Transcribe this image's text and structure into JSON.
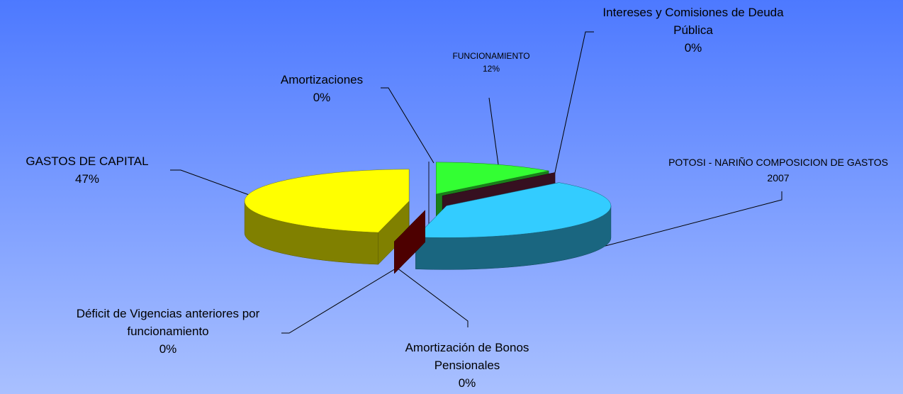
{
  "chart_data": {
    "type": "pie3d",
    "categories": [
      "FUNCIONAMIENTO",
      "Intereses y Comisiones de Deuda Pública",
      "POTOSI - NARIÑO COMPOSICION DE GASTOS 2007",
      "Amortización de Bonos Pensionales",
      "Déficit de Vigencias anteriores por funcionamiento",
      "GASTOS DE CAPITAL",
      "Amortizaciones"
    ],
    "values": [
      12,
      0,
      41,
      0,
      0,
      47,
      0
    ],
    "value_labels": [
      "12%",
      "0%",
      null,
      "0%",
      "0%",
      "47%",
      "0%"
    ],
    "colors": [
      "#33ff33",
      "#6b2040",
      "#33ccff",
      "#3355aa",
      "#990000",
      "#ffff00",
      "#222244"
    ]
  }
}
